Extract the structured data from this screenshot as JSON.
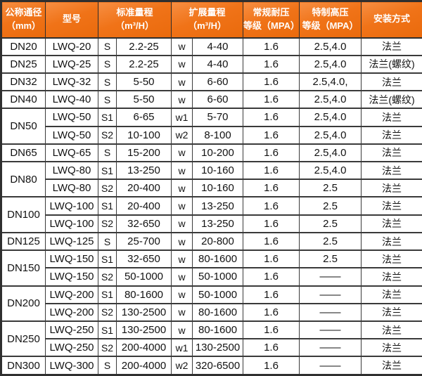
{
  "colors": {
    "header_background": "#F07318",
    "header_text": "#FFFFFF",
    "grid_border": "#3A3A3A",
    "body_text": "#121212",
    "body_background": "#FFFFFF"
  },
  "table": {
    "header": [
      {
        "id": "dn",
        "span": 1,
        "lines": [
          "公称通径",
          "（mm）"
        ]
      },
      {
        "id": "model",
        "span": 1,
        "lines": [
          "型号"
        ]
      },
      {
        "id": "std",
        "span": 2,
        "lines": [
          "标准量程",
          "（m³/H）"
        ]
      },
      {
        "id": "ext",
        "span": 2,
        "lines": [
          "扩展量程",
          "（m³/H）"
        ]
      },
      {
        "id": "normal",
        "span": 1,
        "lines": [
          "常规耐压",
          "等级（MPA）"
        ]
      },
      {
        "id": "high",
        "span": 1,
        "lines": [
          "特制高压",
          "等级（MPA）"
        ]
      },
      {
        "id": "mount",
        "span": 1,
        "lines": [
          "安装方式"
        ]
      }
    ],
    "rows": [
      {
        "dn": "DN20",
        "rowspan": 1,
        "model": "LWQ-20",
        "s": "S",
        "std": "2.2-25",
        "w": "w",
        "ext": "4-40",
        "pn": "1.6",
        "hp": "2.5,4.0",
        "mount": "法兰"
      },
      {
        "dn": "DN25",
        "rowspan": 1,
        "model": "LWQ-25",
        "s": "S",
        "std": "2.2-25",
        "w": "w",
        "ext": "4-40",
        "pn": "1.6",
        "hp": "2.5,4.0",
        "mount": "法兰(螺纹)"
      },
      {
        "dn": "DN32",
        "rowspan": 1,
        "model": "LWQ-32",
        "s": "S",
        "std": "5-50",
        "w": "w",
        "ext": "6-60",
        "pn": "1.6",
        "hp": "2.5,4.0,",
        "mount": "法兰"
      },
      {
        "dn": "DN40",
        "rowspan": 1,
        "model": "LWQ-40",
        "s": "S",
        "std": "5-50",
        "w": "w",
        "ext": "6-60",
        "pn": "1.6",
        "hp": "2.5,4.0",
        "mount": "法兰(螺纹)"
      },
      {
        "dn": "DN50",
        "rowspan": 2,
        "model": "LWQ-50",
        "s": "S1",
        "std": "6-65",
        "w": "w1",
        "ext": "5-70",
        "pn": "1.6",
        "hp": "2.5,4.0",
        "mount": "法兰"
      },
      {
        "model": "LWQ-50",
        "s": "S2",
        "std": "10-100",
        "w": "w2",
        "ext": "8-100",
        "pn": "1.6",
        "hp": "2.5,4.0",
        "mount": "法兰"
      },
      {
        "dn": "DN65",
        "rowspan": 1,
        "model": "LWQ-65",
        "s": "S",
        "std": "15-200",
        "w": "w",
        "ext": "10-200",
        "pn": "1.6",
        "hp": "2.5,4.0",
        "mount": "法兰"
      },
      {
        "dn": "DN80",
        "rowspan": 2,
        "model": "LWQ-80",
        "s": "S1",
        "std": "13-250",
        "w": "w",
        "ext": "10-160",
        "pn": "1.6",
        "hp": "2.5,4.0",
        "mount": "法兰"
      },
      {
        "model": "LWQ-80",
        "s": "S2",
        "std": "20-400",
        "w": "w",
        "ext": "10-160",
        "pn": "1.6",
        "hp": "2.5",
        "mount": "法兰"
      },
      {
        "dn": "DN100",
        "rowspan": 2,
        "model": "LWQ-100",
        "s": "S1",
        "std": "20-400",
        "w": "w",
        "ext": "13-250",
        "pn": "1.6",
        "hp": "2.5",
        "mount": "法兰"
      },
      {
        "model": "LWQ-100",
        "s": "S2",
        "std": "32-650",
        "w": "w",
        "ext": "13-250",
        "pn": "1.6",
        "hp": "2.5",
        "mount": "法兰"
      },
      {
        "dn": "DN125",
        "rowspan": 1,
        "model": "LWQ-125",
        "s": "S",
        "std": "25-700",
        "w": "w",
        "ext": "20-800",
        "pn": "1.6",
        "hp": "2.5",
        "mount": "法兰"
      },
      {
        "dn": "DN150",
        "rowspan": 2,
        "model": "LWQ-150",
        "s": "S1",
        "std": "32-650",
        "w": "w",
        "ext": "80-1600",
        "pn": "1.6",
        "hp": "2.5",
        "mount": "法兰"
      },
      {
        "model": "LWQ-150",
        "s": "S2",
        "std": "50-1000",
        "w": "w",
        "ext": "50-1000",
        "pn": "1.6",
        "hp": "——",
        "mount": "法兰"
      },
      {
        "dn": "DN200",
        "rowspan": 2,
        "model": "LWQ-200",
        "s": "S1",
        "std": "80-1600",
        "w": "w",
        "ext": "50-1000",
        "pn": "1.6",
        "hp": "——",
        "mount": "法兰"
      },
      {
        "model": "LWQ-200",
        "s": "S2",
        "std": "130-2500",
        "w": "w",
        "ext": "80-1600",
        "pn": "1.6",
        "hp": "——",
        "mount": "法兰"
      },
      {
        "dn": "DN250",
        "rowspan": 2,
        "model": "LWQ-250",
        "s": "S1",
        "std": "130-2500",
        "w": "w",
        "ext": "80-1600",
        "pn": "1.6",
        "hp": "——",
        "mount": "法兰"
      },
      {
        "model": "LWQ-250",
        "s": "S2",
        "std": "200-4000",
        "w": "w1",
        "ext": "130-2500",
        "pn": "1.6",
        "hp": "——",
        "mount": "法兰"
      },
      {
        "dn": "DN300",
        "rowspan": 1,
        "model": "LWQ-300",
        "s": "S",
        "std": "200-4000",
        "w": "w2",
        "ext": "320-6500",
        "pn": "1.6",
        "hp": "——",
        "mount": "法兰"
      }
    ]
  }
}
